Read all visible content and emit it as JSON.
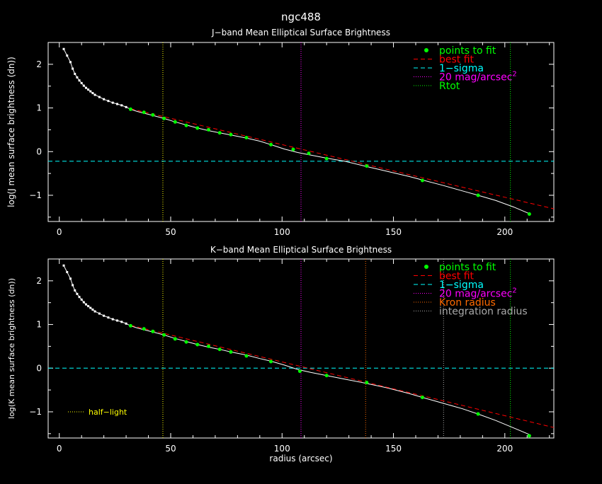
{
  "figure": {
    "title": "ngc488",
    "xlabel": "radius (arcsec)",
    "colors": {
      "background": "#000000",
      "axes": "#ffffff",
      "data_line": "#ffffff",
      "points_to_fit": "#00ff00",
      "best_fit": "#ff0000",
      "one_sigma": "#00ffff",
      "mag20": "#ff00ff",
      "rtot": "#00ff00",
      "kron": "#ff6a00",
      "integration": "#aaaaaa",
      "half_light": "#ffff00"
    }
  },
  "chart_data": [
    {
      "type": "line",
      "title": "J−band Mean Elliptical Surface Brightness",
      "ylabel": "log(J mean surface brightness (dn))",
      "xlim": [
        -5,
        222
      ],
      "ylim": [
        -1.6,
        2.5
      ],
      "xticks": [
        0,
        50,
        100,
        150,
        200
      ],
      "yticks": [
        -1,
        0,
        1,
        2
      ],
      "profile": {
        "x": [
          2,
          3.5,
          5,
          6,
          7,
          8,
          9,
          10,
          11,
          12,
          13,
          14,
          15,
          16,
          18,
          20,
          22,
          24,
          26,
          28,
          30,
          32,
          35,
          38,
          42,
          47,
          52,
          57,
          62,
          67,
          72,
          77,
          84,
          90,
          95,
          101,
          107,
          113,
          120,
          128,
          137,
          147,
          157,
          163,
          172,
          181,
          188,
          196,
          204,
          211
        ],
        "y": [
          2.35,
          2.2,
          2.05,
          1.9,
          1.78,
          1.7,
          1.63,
          1.57,
          1.51,
          1.46,
          1.42,
          1.38,
          1.34,
          1.3,
          1.25,
          1.2,
          1.16,
          1.12,
          1.09,
          1.06,
          1.02,
          0.97,
          0.92,
          0.88,
          0.83,
          0.76,
          0.68,
          0.61,
          0.54,
          0.48,
          0.43,
          0.38,
          0.31,
          0.24,
          0.16,
          0.06,
          -0.02,
          -0.08,
          -0.15,
          -0.22,
          -0.33,
          -0.45,
          -0.57,
          -0.65,
          -0.77,
          -0.9,
          -1.0,
          -1.12,
          -1.27,
          -1.42
        ]
      },
      "points_to_fit": {
        "x": [
          32,
          38,
          42,
          47,
          52,
          57,
          62,
          67,
          72,
          77,
          84,
          95,
          105,
          112,
          120,
          138,
          163,
          188,
          211
        ],
        "y": [
          0.97,
          0.9,
          0.84,
          0.76,
          0.68,
          0.6,
          0.54,
          0.5,
          0.43,
          0.39,
          0.32,
          0.16,
          0.05,
          -0.04,
          -0.16,
          -0.33,
          -0.66,
          -1.0,
          -1.43
        ]
      },
      "best_fit": {
        "x": [
          32,
          222
        ],
        "y": [
          0.98,
          -1.31
        ]
      },
      "one_sigma": -0.22,
      "mag20_radius": 108.5,
      "rtot_radius": 202.5,
      "half_light_radius": 46.5,
      "legend": {
        "placement": "top-right",
        "entries": [
          {
            "label": "points to fit",
            "marker": "dot",
            "color": "#00ff00"
          },
          {
            "label": "best fit",
            "marker": "dashed",
            "color": "#ff0000"
          },
          {
            "label": "1−sigma",
            "marker": "dashed",
            "color": "#00ffff"
          },
          {
            "label": "20 mag/arcsec",
            "sup": "2",
            "marker": "dotted",
            "color": "#ff00ff"
          },
          {
            "label": "Rtot",
            "marker": "dotted",
            "color": "#00ff00"
          }
        ]
      }
    },
    {
      "type": "line",
      "title": "K−band Mean Elliptical Surface Brightness",
      "ylabel": "log(K mean surface brightness (dn))",
      "xlabel": "radius (arcsec)",
      "xlim": [
        -5,
        222
      ],
      "ylim": [
        -1.6,
        2.5
      ],
      "xticks": [
        0,
        50,
        100,
        150,
        200
      ],
      "yticks": [
        -1,
        0,
        1,
        2
      ],
      "profile": {
        "x": [
          2,
          3.5,
          5,
          6,
          7,
          8,
          9,
          10,
          11,
          12,
          13,
          14,
          15,
          16,
          18,
          20,
          22,
          24,
          26,
          28,
          30,
          32,
          35,
          38,
          42,
          47,
          52,
          57,
          62,
          67,
          72,
          77,
          84,
          90,
          95,
          101,
          107,
          113,
          120,
          128,
          137,
          147,
          157,
          163,
          172,
          181,
          188,
          196,
          204,
          211
        ],
        "y": [
          2.35,
          2.2,
          2.05,
          1.9,
          1.78,
          1.7,
          1.63,
          1.57,
          1.51,
          1.46,
          1.42,
          1.38,
          1.34,
          1.3,
          1.25,
          1.2,
          1.16,
          1.12,
          1.09,
          1.06,
          1.02,
          0.97,
          0.92,
          0.88,
          0.83,
          0.76,
          0.68,
          0.61,
          0.54,
          0.48,
          0.43,
          0.37,
          0.3,
          0.22,
          0.16,
          0.07,
          -0.03,
          -0.1,
          -0.17,
          -0.25,
          -0.34,
          -0.45,
          -0.58,
          -0.67,
          -0.8,
          -0.93,
          -1.05,
          -1.2,
          -1.37,
          -1.52
        ]
      },
      "points_to_fit": {
        "x": [
          32,
          38,
          42,
          47,
          52,
          57,
          62,
          67,
          72,
          77,
          84,
          95,
          108,
          120,
          138,
          163,
          188,
          211
        ],
        "y": [
          0.97,
          0.9,
          0.84,
          0.76,
          0.67,
          0.6,
          0.54,
          0.5,
          0.43,
          0.37,
          0.28,
          0.15,
          -0.07,
          -0.17,
          -0.33,
          -0.67,
          -1.05,
          -1.55
        ]
      },
      "best_fit": {
        "x": [
          32,
          222
        ],
        "y": [
          0.98,
          -1.36
        ]
      },
      "one_sigma": 0.0,
      "mag20_radius": 108.5,
      "kron_radius": 137.5,
      "integration_radius": 172.5,
      "rtot_radius": 202.5,
      "half_light_radius": 46.5,
      "half_light_label": "half−light",
      "legend": {
        "placement": "top-right",
        "entries": [
          {
            "label": "points to fit",
            "marker": "dot",
            "color": "#00ff00"
          },
          {
            "label": "best fit",
            "marker": "dashed",
            "color": "#ff0000"
          },
          {
            "label": "1−sigma",
            "marker": "dashed",
            "color": "#00ffff"
          },
          {
            "label": "20 mag/arcsec",
            "sup": "2",
            "marker": "dotted",
            "color": "#ff00ff"
          },
          {
            "label": "Kron radius",
            "marker": "dotted",
            "color": "#ff6a00"
          },
          {
            "label": "integration radius",
            "marker": "dotted",
            "color": "#aaaaaa"
          }
        ]
      }
    }
  ]
}
